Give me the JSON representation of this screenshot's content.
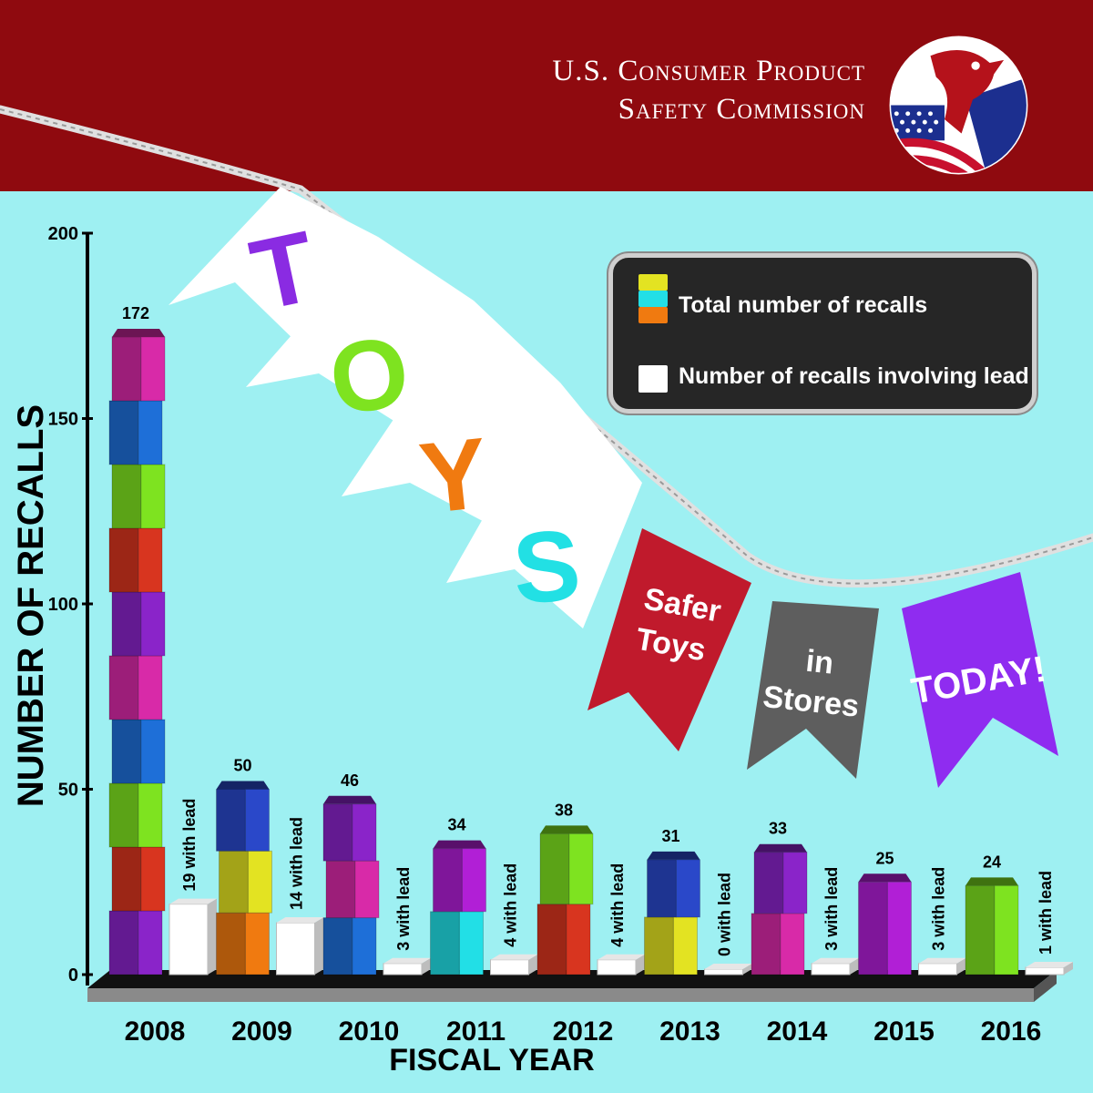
{
  "header": {
    "org_line1": "U.S. Consumer Product",
    "org_line2": "Safety Commission"
  },
  "banner": {
    "toy_letters": [
      "T",
      "O",
      "Y",
      "S"
    ],
    "pennant_1": [
      "Safer",
      "Toys"
    ],
    "pennant_2": [
      "in",
      "Stores"
    ],
    "pennant_3": [
      "TODAY!"
    ]
  },
  "legend": {
    "total_label": "Total number of recalls",
    "lead_label": "Number of recalls involving lead"
  },
  "colors": {
    "header": "#8f0a0f",
    "background": "#9ef0f2",
    "floor": "#111111",
    "lead_box": "#ffffff",
    "pennant_red": "#c01a2c",
    "pennant_gray": "#5e5e5e",
    "pennant_purple": "#8f2cf0",
    "letter_T": "#8a2be2",
    "letter_O": "#7ee320",
    "letter_Y": "#f07a10",
    "letter_S": "#22e0e4"
  },
  "chart_data": {
    "type": "bar",
    "ylabel": "NUMBER OF RECALLS",
    "xlabel": "FISCAL YEAR",
    "ylim": [
      0,
      200
    ],
    "yticks": [
      0,
      50,
      100,
      150,
      200
    ],
    "categories": [
      "2008",
      "2009",
      "2010",
      "2011",
      "2012",
      "2013",
      "2014",
      "2015",
      "2016"
    ],
    "series": [
      {
        "name": "Total number of recalls",
        "values": [
          172,
          50,
          46,
          34,
          38,
          31,
          33,
          25,
          24
        ],
        "value_labels": [
          "172",
          "50",
          "46",
          "34",
          "38",
          "31",
          "33",
          "25",
          "24"
        ]
      },
      {
        "name": "Number of recalls involving lead",
        "values": [
          19,
          14,
          3,
          4,
          4,
          0,
          3,
          3,
          1
        ],
        "value_labels": [
          "19 with lead",
          "14 with lead",
          "3 with lead",
          "4 with lead",
          "4 with lead",
          "0 with lead",
          "3 with lead",
          "3 with lead",
          "1 with lead"
        ]
      }
    ]
  }
}
